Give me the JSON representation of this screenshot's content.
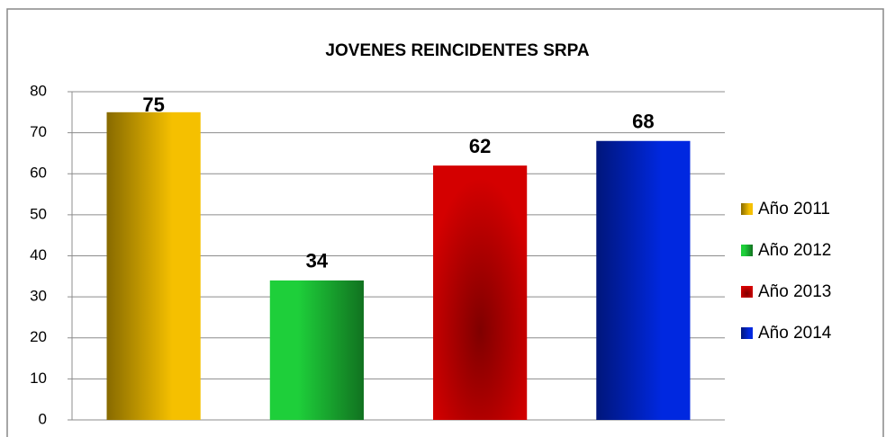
{
  "chart_data": {
    "type": "bar",
    "title": "JOVENES  REINCIDENTES SRPA",
    "categories": [
      null
    ],
    "series": [
      {
        "name": "Año 2011",
        "color": "#f5c000",
        "values": [
          75
        ]
      },
      {
        "name": "Año 2012",
        "color": "#1ecf3a",
        "values": [
          34
        ]
      },
      {
        "name": "Año 2013",
        "color": "#d40000",
        "values": [
          62
        ]
      },
      {
        "name": "Año 2014",
        "color": "#0028e0",
        "values": [
          68
        ]
      }
    ],
    "ylim": [
      0,
      80
    ],
    "yticks": [
      0,
      10,
      20,
      30,
      40,
      50,
      60,
      70,
      80
    ],
    "grid": true,
    "legend": "right"
  }
}
